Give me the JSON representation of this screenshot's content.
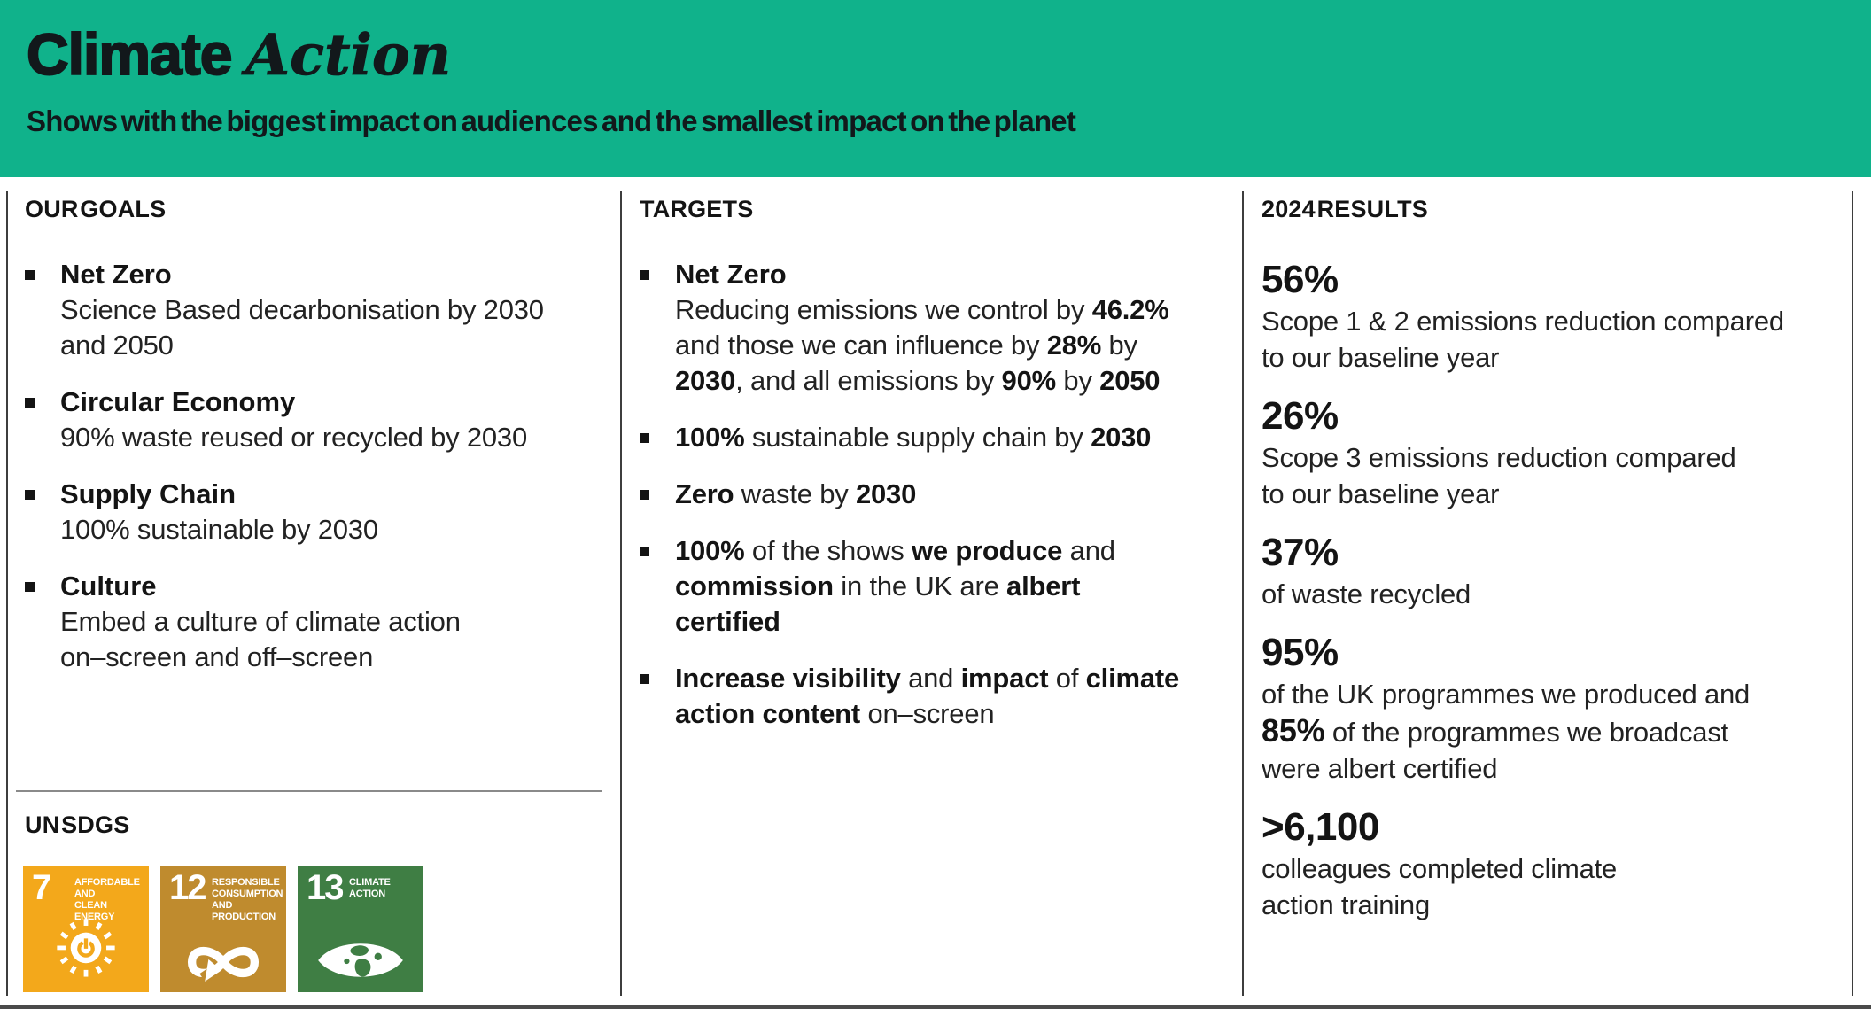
{
  "colors": {
    "header_bg": "#10B28B",
    "text": "#1c1c1c",
    "sdg7": "#F3A81B",
    "sdg12": "#BF8B2E",
    "sdg13": "#3F7E44"
  },
  "header": {
    "title_bold": "Climate",
    "title_italic": "Action",
    "subtitle": "Shows with the biggest impact on audiences and the smallest impact on the planet"
  },
  "goals": {
    "heading": "OUR GOALS",
    "items": [
      {
        "title": "Net Zero",
        "desc": "Science Based decarbonisation by 2030\nand 2050"
      },
      {
        "title": "Circular Economy",
        "desc": "90% waste reused or recycled by 2030"
      },
      {
        "title": "Supply Chain",
        "desc": "100% sustainable by 2030"
      },
      {
        "title": "Culture",
        "desc": "Embed a culture of climate action\non–screen and off–screen"
      }
    ],
    "sdg": {
      "heading": "UN SDGS",
      "tiles": [
        {
          "number": "7",
          "label": "AFFORDABLE AND\nCLEAN ENERGY",
          "color": "#F3A81B",
          "icon": "sun-power-icon"
        },
        {
          "number": "12",
          "label": "RESPONSIBLE\nCONSUMPTION\nAND PRODUCTION",
          "color": "#BF8B2E",
          "icon": "infinity-arrow-icon"
        },
        {
          "number": "13",
          "label": "CLIMATE\nACTION",
          "color": "#3F7E44",
          "icon": "eye-globe-icon"
        }
      ]
    }
  },
  "targets": {
    "heading": "TARGETS",
    "items": [
      {
        "title": "Net Zero",
        "segments": [
          {
            "t": "Reducing emissions we control by "
          },
          {
            "t": "46.2%",
            "b": 1
          },
          {
            "t": "\nand those we can influence by "
          },
          {
            "t": "28%",
            "b": 1
          },
          {
            "t": " by\n"
          },
          {
            "t": "2030",
            "b": 1
          },
          {
            "t": ", and all emissions by "
          },
          {
            "t": "90%",
            "b": 1
          },
          {
            "t": " by "
          },
          {
            "t": "2050",
            "b": 1
          }
        ]
      },
      {
        "segments": [
          {
            "t": "100%",
            "b": 1
          },
          {
            "t": " sustainable supply chain by "
          },
          {
            "t": "2030",
            "b": 1
          }
        ]
      },
      {
        "segments": [
          {
            "t": "Zero",
            "b": 1
          },
          {
            "t": " waste by "
          },
          {
            "t": "2030",
            "b": 1
          }
        ]
      },
      {
        "segments": [
          {
            "t": "100%",
            "b": 1
          },
          {
            "t": " of the shows "
          },
          {
            "t": "we produce",
            "b": 1
          },
          {
            "t": " and\n"
          },
          {
            "t": "commission",
            "b": 1
          },
          {
            "t": " in the UK are "
          },
          {
            "t": "albert\ncertified",
            "b": 1
          }
        ]
      },
      {
        "segments": [
          {
            "t": "Increase visibility",
            "b": 1
          },
          {
            "t": " and "
          },
          {
            "t": "impact",
            "b": 1
          },
          {
            "t": " of "
          },
          {
            "t": "climate\naction content",
            "b": 1
          },
          {
            "t": " on–screen"
          }
        ]
      }
    ]
  },
  "results": {
    "heading": "2024 RESULTS",
    "items": [
      {
        "stat": "56%",
        "desc": [
          {
            "t": "Scope 1 & 2 emissions reduction compared\nto our baseline year"
          }
        ]
      },
      {
        "stat": "26%",
        "desc": [
          {
            "t": "Scope 3 emissions reduction compared\nto our baseline year"
          }
        ]
      },
      {
        "stat": "37%",
        "desc": [
          {
            "t": "of waste recycled"
          }
        ]
      },
      {
        "stat": "95%",
        "desc": [
          {
            "t": "of the UK programmes we produced and\n"
          },
          {
            "t": "85%",
            "b": 1,
            "big": 1
          },
          {
            "t": " of the programmes we broadcast\nwere albert certified"
          }
        ]
      },
      {
        "stat": ">6,100",
        "desc": [
          {
            "t": "colleagues completed climate\naction training"
          }
        ]
      }
    ]
  }
}
